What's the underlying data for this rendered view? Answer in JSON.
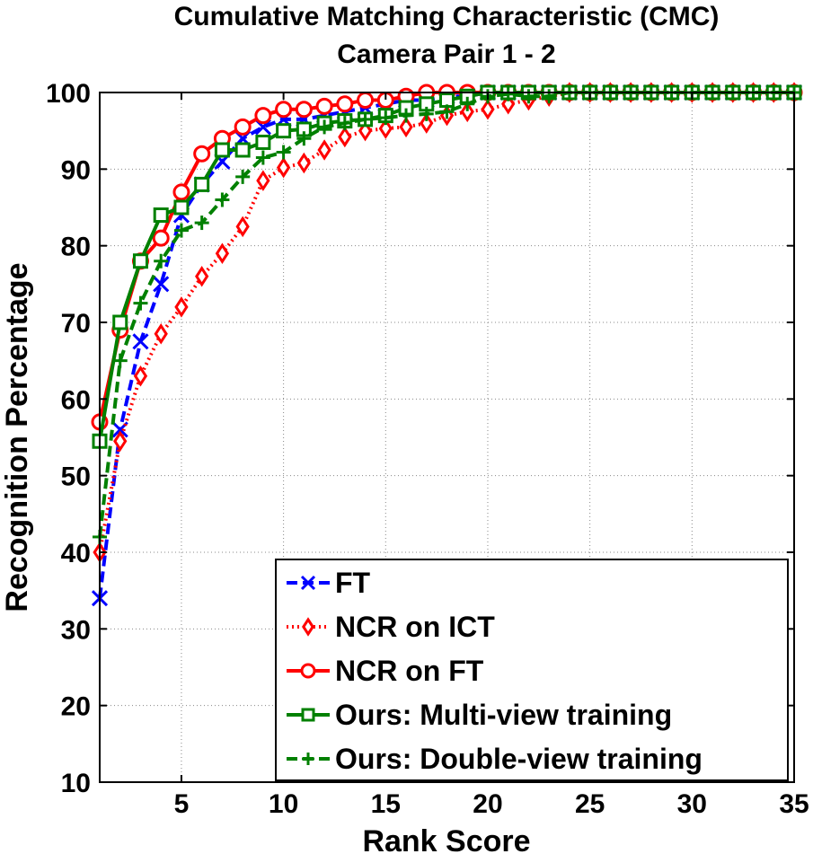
{
  "chart_data": {
    "type": "line",
    "title": "Cumulative Matching Characteristic (CMC)",
    "subtitle": "Camera Pair 1 - 2",
    "xlabel": "Rank Score",
    "ylabel": "Recognition Percentage",
    "xlim": [
      1,
      35
    ],
    "ylim": [
      10,
      100
    ],
    "xticks": [
      5,
      10,
      15,
      20,
      25,
      30,
      35
    ],
    "yticks": [
      10,
      20,
      30,
      40,
      50,
      60,
      70,
      80,
      90,
      100
    ],
    "grid": true,
    "legend_position": "bottom-right",
    "x": [
      1,
      2,
      3,
      4,
      5,
      6,
      7,
      8,
      9,
      10,
      11,
      12,
      13,
      14,
      15,
      16,
      17,
      18,
      19,
      20,
      21,
      22,
      23,
      24,
      25,
      26,
      27,
      28,
      29,
      30,
      31,
      32,
      33,
      34,
      35
    ],
    "series": [
      {
        "name": "FT",
        "color": "#0000ff",
        "line_style": "dashed",
        "marker": "x",
        "values": [
          34,
          56,
          67.5,
          75,
          84,
          88,
          91,
          94,
          95.5,
          96.5,
          96.5,
          97,
          97.5,
          98,
          98.5,
          99,
          99,
          99.5,
          99.5,
          100,
          100,
          100,
          100,
          100,
          100,
          100,
          100,
          100,
          100,
          100,
          100,
          100,
          100,
          100,
          100
        ]
      },
      {
        "name": "NCR on ICT",
        "color": "#ff0000",
        "line_style": "dotted",
        "marker": "diamond",
        "values": [
          40,
          54.5,
          63,
          68.5,
          72,
          76,
          79,
          82.5,
          88.5,
          90.2,
          90.8,
          92.5,
          94.2,
          95,
          95.3,
          95.5,
          96,
          97,
          97.5,
          97.8,
          98.5,
          99,
          99.5,
          100,
          100,
          100,
          100,
          100,
          100,
          100,
          100,
          100,
          100,
          100,
          100
        ]
      },
      {
        "name": "NCR on FT",
        "color": "#ff0000",
        "line_style": "solid",
        "marker": "circle",
        "values": [
          57,
          69,
          78,
          81,
          87,
          92,
          94,
          95.5,
          97,
          97.8,
          97.8,
          98.2,
          98.5,
          99,
          99,
          99.5,
          100,
          100,
          100,
          100,
          100,
          100,
          100,
          100,
          100,
          100,
          100,
          100,
          100,
          100,
          100,
          100,
          100,
          100,
          100
        ]
      },
      {
        "name": "Ours: Multi-view training",
        "color": "#008000",
        "line_style": "solid",
        "marker": "square",
        "values": [
          54.5,
          70,
          78,
          84,
          85,
          88,
          92.5,
          92.5,
          93.5,
          95,
          95.2,
          96,
          96.3,
          96.5,
          97,
          98,
          98.5,
          99,
          99.5,
          100,
          100,
          100,
          100,
          100,
          100,
          100,
          100,
          100,
          100,
          100,
          100,
          100,
          100,
          100,
          100
        ]
      },
      {
        "name": "Ours: Double-view training",
        "color": "#008000",
        "line_style": "dashed",
        "marker": "plus",
        "values": [
          42,
          65,
          72.5,
          78,
          82,
          83,
          86,
          89,
          91.5,
          92.2,
          94,
          95.5,
          96,
          96.5,
          96.7,
          97,
          97.2,
          97.5,
          98.5,
          99.5,
          99.8,
          99.5,
          99.5,
          100,
          100,
          100,
          100,
          100,
          100,
          100,
          100,
          100,
          100,
          100,
          100
        ]
      }
    ]
  }
}
